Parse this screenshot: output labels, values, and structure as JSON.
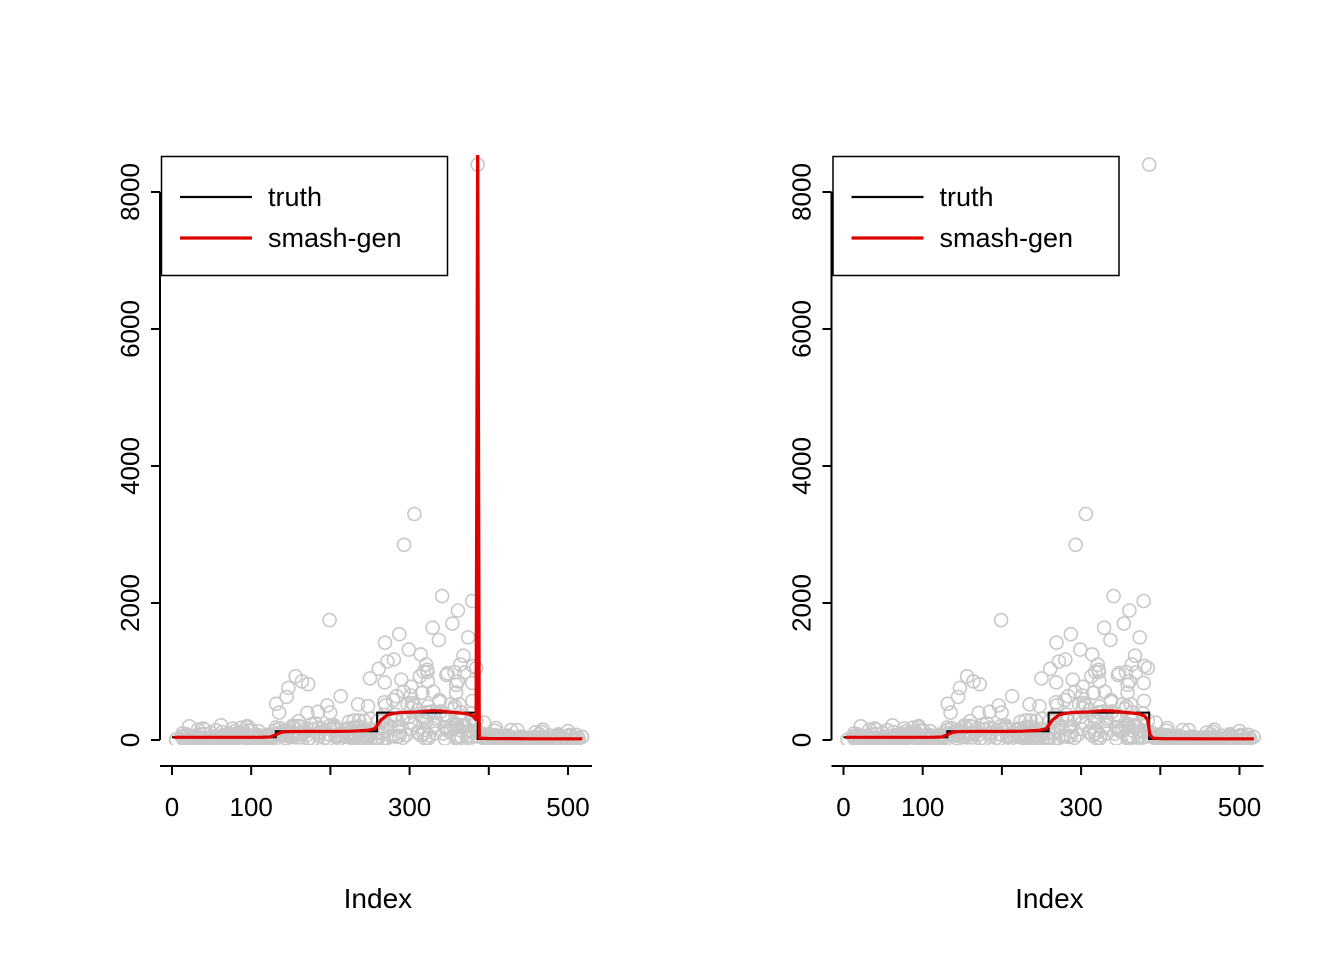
{
  "figure": {
    "background": "#ffffff",
    "description": "Two side-by-side R-style scatter plots comparing a piecewise-constant truth signal with a smash-gen estimate"
  },
  "chart_data": [
    {
      "id": "left",
      "type": "scatter",
      "title": "",
      "xlabel": "Index",
      "ylabel": "",
      "xlim": [
        0,
        520
      ],
      "ylim": [
        0,
        8400
      ],
      "x_ticks": [
        0,
        100,
        200,
        300,
        400,
        500
      ],
      "x_tick_labels": [
        "0",
        "100",
        "",
        "300",
        "",
        "500"
      ],
      "y_ticks": [
        0,
        2000,
        4000,
        6000,
        8000
      ],
      "y_tick_labels": [
        "0",
        "2000",
        "4000",
        "6000",
        "8000"
      ],
      "grid": false,
      "legend": {
        "position": "topleft",
        "entries": [
          {
            "label": "truth",
            "color": "#000000"
          },
          {
            "label": "smash-gen",
            "color": "#e00000"
          }
        ]
      },
      "annotations": [
        "smash-gen curve has a large vertical spike at x≈386 exceeding the y-axis range",
        "extreme scatter outlier near (386, 8400)"
      ],
      "series": [
        {
          "name": "observations",
          "type": "scatter",
          "color": "#c8c8c8",
          "generated": {
            "seed": 7,
            "segments": [
              {
                "x0": 4,
                "x1": 131,
                "n": 120,
                "base": 4,
                "scale": 38,
                "cap": 420
              },
              {
                "x0": 131,
                "x1": 259,
                "n": 120,
                "base": 5,
                "scale": 140,
                "cap": 950
              },
              {
                "x0": 259,
                "x1": 386,
                "n": 125,
                "base": 8,
                "scale": 320,
                "cap": 2300
              },
              {
                "x0": 386,
                "x1": 518,
                "n": 125,
                "base": 3,
                "scale": 28,
                "cap": 320
              }
            ]
          },
          "outliers": [
            [
              62,
              215
            ],
            [
              95,
              185
            ],
            [
              147,
              760
            ],
            [
              156,
              930
            ],
            [
              164,
              855
            ],
            [
              172,
              815
            ],
            [
              199,
              1750
            ],
            [
              213,
              640
            ],
            [
              235,
              520
            ],
            [
              250,
              900
            ],
            [
              261,
              1040
            ],
            [
              269,
              1420
            ],
            [
              280,
              1175
            ],
            [
              287,
              1545
            ],
            [
              293,
              2850
            ],
            [
              299,
              1320
            ],
            [
              306,
              3300
            ],
            [
              314,
              1250
            ],
            [
              321,
              1100
            ],
            [
              329,
              1640
            ],
            [
              337,
              1460
            ],
            [
              341,
              2100
            ],
            [
              348,
              975
            ],
            [
              354,
              1700
            ],
            [
              361,
              1890
            ],
            [
              368,
              1230
            ],
            [
              374,
              1500
            ],
            [
              380,
              1080
            ],
            [
              386,
              8400
            ],
            [
              394,
              255
            ],
            [
              409,
              175
            ],
            [
              428,
              145
            ],
            [
              468,
              150
            ],
            [
              500,
              130
            ]
          ]
        },
        {
          "name": "truth",
          "type": "step",
          "color": "#000000",
          "segments": [
            [
              0,
              131,
              40
            ],
            [
              131,
              259,
              128
            ],
            [
              259,
              386,
              400
            ],
            [
              386,
              518,
              15
            ]
          ]
        },
        {
          "name": "smash-gen",
          "type": "line",
          "color": "#e00000",
          "points": [
            [
              2,
              40
            ],
            [
              60,
              40
            ],
            [
              110,
              40
            ],
            [
              124,
              44
            ],
            [
              130,
              72
            ],
            [
              137,
              108
            ],
            [
              145,
              122
            ],
            [
              170,
              125
            ],
            [
              200,
              124
            ],
            [
              226,
              128
            ],
            [
              246,
              140
            ],
            [
              256,
              165
            ],
            [
              264,
              295
            ],
            [
              273,
              372
            ],
            [
              286,
              398
            ],
            [
              300,
              406
            ],
            [
              314,
              413
            ],
            [
              327,
              428
            ],
            [
              339,
              424
            ],
            [
              351,
              407
            ],
            [
              362,
              396
            ],
            [
              373,
              383
            ],
            [
              380,
              352
            ],
            [
              384,
              300
            ],
            [
              386,
              9000
            ],
            [
              388,
              28
            ],
            [
              400,
              22
            ],
            [
              460,
              18
            ],
            [
              518,
              18
            ]
          ]
        }
      ]
    },
    {
      "id": "right",
      "type": "scatter",
      "title": "",
      "xlabel": "Index",
      "ylabel": "",
      "xlim": [
        0,
        520
      ],
      "ylim": [
        0,
        8400
      ],
      "x_ticks": [
        0,
        100,
        200,
        300,
        400,
        500
      ],
      "x_tick_labels": [
        "0",
        "100",
        "",
        "300",
        "",
        "500"
      ],
      "y_ticks": [
        0,
        2000,
        4000,
        6000,
        8000
      ],
      "y_tick_labels": [
        "0",
        "2000",
        "4000",
        "6000",
        "8000"
      ],
      "grid": false,
      "legend": {
        "position": "topleft",
        "entries": [
          {
            "label": "truth",
            "color": "#000000"
          },
          {
            "label": "smash-gen",
            "color": "#e00000"
          }
        ]
      },
      "annotations": [
        "same data as left panel but smash-gen estimate has no spike",
        "extreme scatter outlier near (386, 8400)"
      ],
      "series": [
        {
          "name": "observations",
          "type": "scatter",
          "color": "#c8c8c8",
          "generated": {
            "seed": 7,
            "segments": [
              {
                "x0": 4,
                "x1": 131,
                "n": 120,
                "base": 4,
                "scale": 38,
                "cap": 420
              },
              {
                "x0": 131,
                "x1": 259,
                "n": 120,
                "base": 5,
                "scale": 140,
                "cap": 950
              },
              {
                "x0": 259,
                "x1": 386,
                "n": 125,
                "base": 8,
                "scale": 320,
                "cap": 2300
              },
              {
                "x0": 386,
                "x1": 518,
                "n": 125,
                "base": 3,
                "scale": 28,
                "cap": 320
              }
            ]
          },
          "outliers": [
            [
              62,
              215
            ],
            [
              95,
              185
            ],
            [
              147,
              760
            ],
            [
              156,
              930
            ],
            [
              164,
              855
            ],
            [
              172,
              815
            ],
            [
              199,
              1750
            ],
            [
              213,
              640
            ],
            [
              235,
              520
            ],
            [
              250,
              900
            ],
            [
              261,
              1040
            ],
            [
              269,
              1420
            ],
            [
              280,
              1175
            ],
            [
              287,
              1545
            ],
            [
              293,
              2850
            ],
            [
              299,
              1320
            ],
            [
              306,
              3300
            ],
            [
              314,
              1250
            ],
            [
              321,
              1100
            ],
            [
              329,
              1640
            ],
            [
              337,
              1460
            ],
            [
              341,
              2100
            ],
            [
              348,
              975
            ],
            [
              354,
              1700
            ],
            [
              361,
              1890
            ],
            [
              368,
              1230
            ],
            [
              374,
              1500
            ],
            [
              380,
              1080
            ],
            [
              386,
              8400
            ],
            [
              394,
              255
            ],
            [
              409,
              175
            ],
            [
              428,
              145
            ],
            [
              468,
              150
            ],
            [
              500,
              130
            ]
          ]
        },
        {
          "name": "truth",
          "type": "step",
          "color": "#000000",
          "segments": [
            [
              0,
              131,
              40
            ],
            [
              131,
              259,
              128
            ],
            [
              259,
              386,
              400
            ],
            [
              386,
              518,
              15
            ]
          ]
        },
        {
          "name": "smash-gen",
          "type": "line",
          "color": "#e00000",
          "points": [
            [
              2,
              40
            ],
            [
              60,
              40
            ],
            [
              110,
              40
            ],
            [
              124,
              44
            ],
            [
              130,
              72
            ],
            [
              137,
              108
            ],
            [
              145,
              122
            ],
            [
              170,
              125
            ],
            [
              200,
              124
            ],
            [
              226,
              128
            ],
            [
              246,
              140
            ],
            [
              256,
              165
            ],
            [
              264,
              295
            ],
            [
              273,
              372
            ],
            [
              286,
              398
            ],
            [
              300,
              406
            ],
            [
              314,
              413
            ],
            [
              327,
              428
            ],
            [
              339,
              424
            ],
            [
              351,
              407
            ],
            [
              362,
              396
            ],
            [
              373,
              383
            ],
            [
              380,
              352
            ],
            [
              384,
              300
            ],
            [
              387,
              75
            ],
            [
              391,
              26
            ],
            [
              402,
              21
            ],
            [
              460,
              18
            ],
            [
              518,
              18
            ]
          ]
        }
      ]
    }
  ]
}
